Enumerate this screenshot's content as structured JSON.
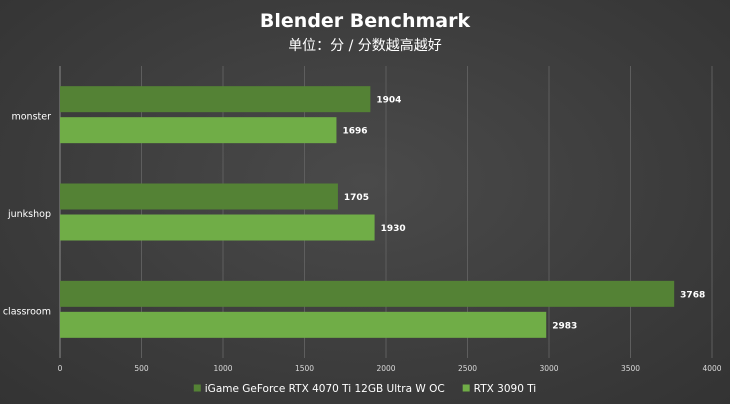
{
  "chart_data": {
    "type": "bar",
    "orientation": "horizontal",
    "title": "Blender Benchmark",
    "subtitle": "单位：分 / 分数越高越好",
    "categories": [
      "monster",
      "junkshop",
      "classroom"
    ],
    "series": [
      {
        "name": "iGame GeForce RTX 4070 Ti 12GB Ultra W OC",
        "color": "#548235",
        "values": [
          1904,
          1705,
          3768
        ]
      },
      {
        "name": "RTX 3090 Ti",
        "color": "#70ad47",
        "values": [
          1696,
          1930,
          2983
        ]
      }
    ],
    "xlim": [
      0,
      4000
    ],
    "xticks": [
      0,
      500,
      1000,
      1500,
      2000,
      2500,
      3000,
      3500,
      4000
    ],
    "grid": true,
    "legend_position": "bottom",
    "data_labels": true
  }
}
